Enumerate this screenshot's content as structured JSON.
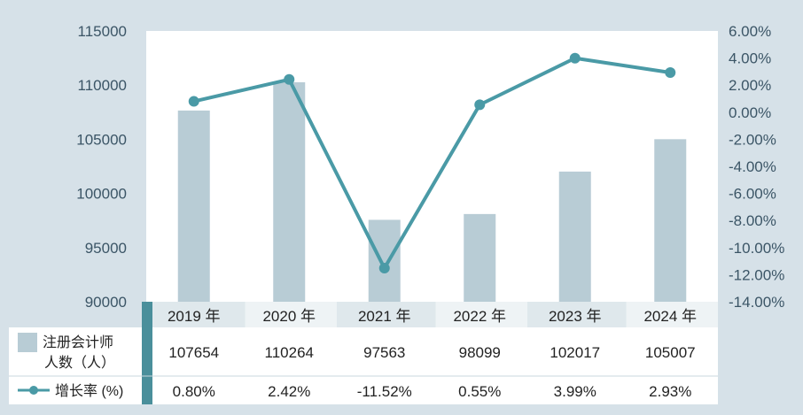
{
  "chart_data": {
    "type": "bar+line",
    "categories": [
      "2019 年",
      "2020 年",
      "2021 年",
      "2022 年",
      "2023 年",
      "2024 年"
    ],
    "series": [
      {
        "name_lines": [
          "注册会计师",
          "人数（人）"
        ],
        "type": "bar",
        "axis": "left",
        "values": [
          107654,
          110264,
          97563,
          98099,
          102017,
          105007
        ],
        "labels": [
          "107654",
          "110264",
          "97563",
          "98099",
          "102017",
          "105007"
        ],
        "color": "#b8ccd5"
      },
      {
        "name": "增长率 (%)",
        "type": "line",
        "axis": "right",
        "values": [
          0.8,
          2.42,
          -11.52,
          0.55,
          3.99,
          2.93
        ],
        "labels": [
          "0.80%",
          "2.42%",
          "-11.52%",
          "0.55%",
          "3.99%",
          "2.93%"
        ],
        "color": "#4a9aa6"
      }
    ],
    "left_axis": {
      "min": 90000,
      "max": 115000,
      "ticks": [
        90000,
        95000,
        100000,
        105000,
        110000,
        115000
      ],
      "tick_labels": [
        "90000",
        "95000",
        "100000",
        "105000",
        "110000",
        "115000"
      ]
    },
    "right_axis": {
      "min": -14,
      "max": 6,
      "ticks": [
        -14,
        -12,
        -10,
        -8,
        -6,
        -4,
        -2,
        0,
        2,
        4,
        6
      ],
      "tick_labels": [
        "-14.00%",
        "-12.00%",
        "-10.00%",
        "-8.00%",
        "-6.00%",
        "-4.00%",
        "-2.00%",
        "0.00%",
        "2.00%",
        "4.00%",
        "6.00%"
      ]
    },
    "grid": false
  },
  "colors": {
    "page_bg": "#d6e1e8",
    "plot_bg": "#ffffff",
    "bar": "#b8ccd5",
    "line": "#4a9aa6",
    "header_row": "#dfe8ec",
    "header_accent": "#8eb4bd",
    "axis_text": "#3b5566",
    "divider": "#4a8f9b"
  }
}
